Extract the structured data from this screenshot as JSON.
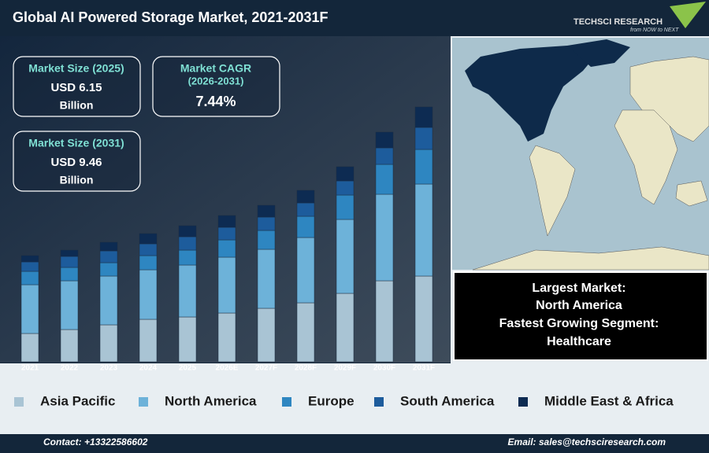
{
  "header": {
    "title": "Global AI Powered Storage Market, 2021-2031F"
  },
  "brand": {
    "name": "TECHSCI RESEARCH",
    "tagline": "from NOW to NEXT"
  },
  "kpis": [
    {
      "label": "Market Size (2025)",
      "value": "USD 6.15",
      "unit": "Billion"
    },
    {
      "label": "Market CAGR",
      "sublabel": "(2026-2031)",
      "value": "7.44%"
    },
    {
      "label": "Market Size (2031)",
      "value": "USD 9.46",
      "unit": "Billion"
    }
  ],
  "summary": {
    "lines": [
      "Largest Market:",
      "North America",
      "Fastest Growing Segment:",
      "Healthcare"
    ]
  },
  "chart_data": {
    "type": "stacked-bar",
    "categories": [
      "2021",
      "2022",
      "2023",
      "2024",
      "2025",
      "2026E",
      "2027F",
      "2028F",
      "2029F",
      "2030F",
      "2031F"
    ],
    "ylim": [
      0,
      340
    ],
    "series": [
      {
        "name": "Asia Pacific",
        "color": "#a9c4d4",
        "values": [
          36,
          41,
          47,
          54,
          57,
          62,
          68,
          75,
          87,
          103,
          109
        ]
      },
      {
        "name": "North America",
        "color": "#6db2d9",
        "values": [
          62,
          62,
          62,
          63,
          66,
          71,
          75,
          83,
          94,
          110,
          117
        ]
      },
      {
        "name": "Europe",
        "color": "#2e86c1",
        "values": [
          17,
          17,
          17,
          18,
          19,
          22,
          24,
          27,
          31,
          38,
          44
        ]
      },
      {
        "name": "South America",
        "color": "#1d5c9c",
        "values": [
          12,
          14,
          15,
          15,
          17,
          16,
          17,
          17,
          18,
          21,
          28
        ]
      },
      {
        "name": "Middle East & Africa",
        "color": "#0d2b52",
        "values": [
          8,
          8,
          11,
          13,
          14,
          15,
          15,
          16,
          18,
          20,
          26
        ]
      }
    ]
  },
  "footer": {
    "contact": "Contact: +13322586602",
    "email": "Email: sales@techsciresearch.com"
  }
}
